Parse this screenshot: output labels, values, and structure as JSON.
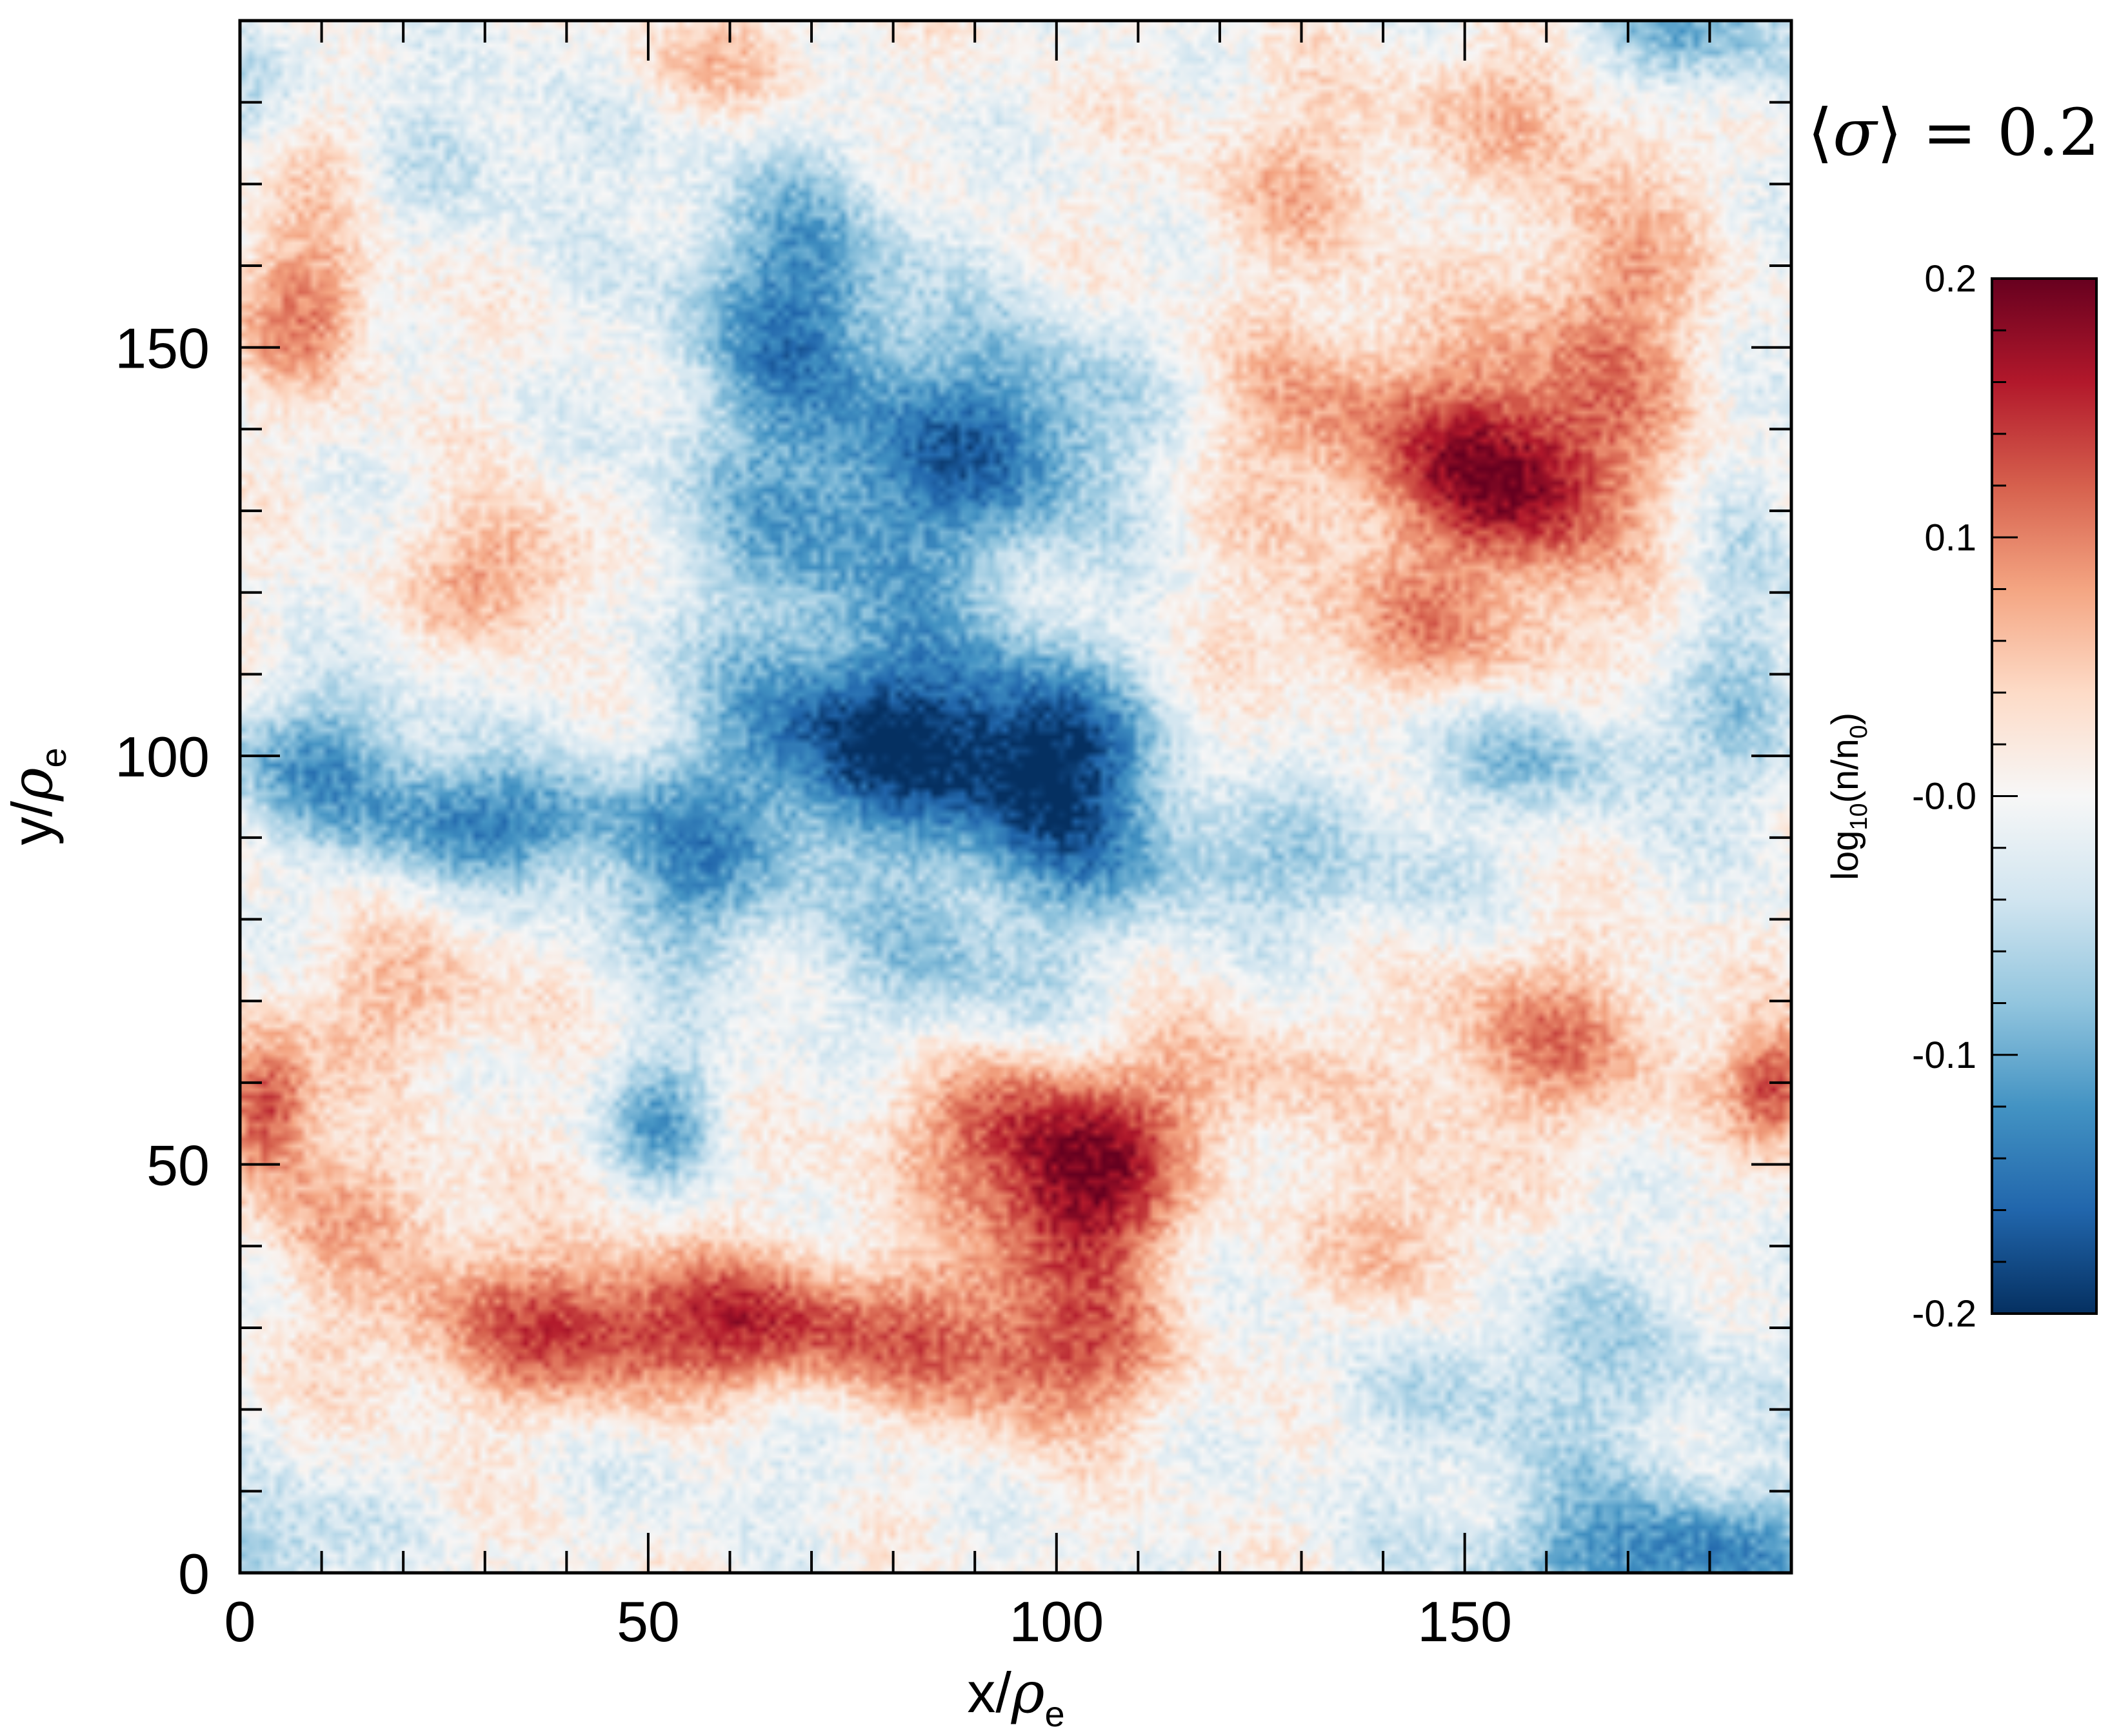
{
  "chart_data": {
    "type": "heatmap",
    "title": "",
    "annotation": {
      "prefix": "⟨",
      "symbol": "σ",
      "suffix": "⟩ = ",
      "value": "0.2"
    },
    "xlabel": {
      "base": "x/",
      "symbol": "ρ",
      "sub": "e"
    },
    "ylabel": {
      "base": "y/",
      "symbol": "ρ",
      "sub": "e"
    },
    "xlim": [
      0,
      190
    ],
    "ylim": [
      0,
      190
    ],
    "x_major_ticks": [
      0,
      50,
      100,
      150
    ],
    "y_major_ticks": [
      0,
      50,
      100,
      150
    ],
    "x_tick_labels": [
      "0",
      "50",
      "100",
      "150"
    ],
    "y_tick_labels": [
      "0",
      "50",
      "100",
      "150"
    ],
    "minor_tick_step": 10,
    "colormap": "RdBu_r",
    "colormap_stops": [
      "#053061",
      "#2166ac",
      "#4393c3",
      "#92c5de",
      "#d1e5f0",
      "#f7f7f7",
      "#fddbc7",
      "#f4a582",
      "#d6604d",
      "#b2182b",
      "#67001f"
    ],
    "colorbar": {
      "label": {
        "base": "log",
        "sub": "10",
        "rest": "(n/n",
        "sub2": "0",
        "end": ")"
      },
      "range": [
        -0.2,
        0.2
      ],
      "ticks": [
        0.2,
        0.1,
        0.0,
        -0.1,
        -0.2
      ],
      "tick_labels": [
        "0.2",
        "0.1",
        "-0.0",
        "-0.1",
        "-0.2"
      ],
      "minor_tick_step": 0.02
    },
    "features": [
      {
        "x": 78,
        "y": 102,
        "amp": -0.19,
        "sx": 14,
        "sy": 9
      },
      {
        "x": 100,
        "y": 98,
        "amp": -0.17,
        "sx": 8,
        "sy": 9
      },
      {
        "x": 68,
        "y": 155,
        "amp": -0.13,
        "sx": 10,
        "sy": 12
      },
      {
        "x": 95,
        "y": 140,
        "amp": -0.12,
        "sx": 12,
        "sy": 9
      },
      {
        "x": 75,
        "y": 128,
        "amp": -0.1,
        "sx": 15,
        "sy": 10
      },
      {
        "x": 30,
        "y": 92,
        "amp": -0.13,
        "sx": 12,
        "sy": 5
      },
      {
        "x": 10,
        "y": 100,
        "amp": -0.1,
        "sx": 10,
        "sy": 6
      },
      {
        "x": 55,
        "y": 85,
        "amp": -0.1,
        "sx": 9,
        "sy": 8
      },
      {
        "x": 52,
        "y": 56,
        "amp": -0.1,
        "sx": 5,
        "sy": 6
      },
      {
        "x": 88,
        "y": 75,
        "amp": -0.07,
        "sx": 12,
        "sy": 9
      },
      {
        "x": 175,
        "y": 2,
        "amp": -0.13,
        "sx": 16,
        "sy": 6
      },
      {
        "x": 3,
        "y": 3,
        "amp": -0.08,
        "sx": 8,
        "sy": 6
      },
      {
        "x": 176,
        "y": 188,
        "amp": -0.12,
        "sx": 8,
        "sy": 6
      },
      {
        "x": 160,
        "y": 100,
        "amp": -0.07,
        "sx": 14,
        "sy": 5
      },
      {
        "x": 135,
        "y": 85,
        "amp": -0.05,
        "sx": 12,
        "sy": 6
      },
      {
        "x": 115,
        "y": 88,
        "amp": -0.06,
        "sx": 10,
        "sy": 5
      },
      {
        "x": 160,
        "y": 25,
        "amp": -0.06,
        "sx": 18,
        "sy": 10
      },
      {
        "x": 185,
        "y": 110,
        "amp": -0.06,
        "sx": 5,
        "sy": 15
      },
      {
        "x": 30,
        "y": 175,
        "amp": -0.04,
        "sx": 12,
        "sy": 8
      },
      {
        "x": 5,
        "y": 180,
        "amp": -0.05,
        "sx": 8,
        "sy": 8
      },
      {
        "x": 60,
        "y": 15,
        "amp": -0.03,
        "sx": 10,
        "sy": 6
      },
      {
        "x": 103,
        "y": 45,
        "amp": 0.16,
        "sx": 8,
        "sy": 8
      },
      {
        "x": 95,
        "y": 55,
        "amp": 0.11,
        "sx": 12,
        "sy": 7
      },
      {
        "x": 70,
        "y": 30,
        "amp": 0.11,
        "sx": 20,
        "sy": 6
      },
      {
        "x": 40,
        "y": 30,
        "amp": 0.1,
        "sx": 18,
        "sy": 7
      },
      {
        "x": 100,
        "y": 25,
        "amp": 0.1,
        "sx": 10,
        "sy": 6
      },
      {
        "x": 3,
        "y": 57,
        "amp": 0.15,
        "sx": 4,
        "sy": 6
      },
      {
        "x": 188,
        "y": 60,
        "amp": 0.13,
        "sx": 4,
        "sy": 5
      },
      {
        "x": 157,
        "y": 133,
        "amp": 0.15,
        "sx": 9,
        "sy": 8
      },
      {
        "x": 140,
        "y": 140,
        "amp": 0.09,
        "sx": 16,
        "sy": 10
      },
      {
        "x": 168,
        "y": 155,
        "amp": 0.09,
        "sx": 7,
        "sy": 12
      },
      {
        "x": 145,
        "y": 115,
        "amp": 0.07,
        "sx": 15,
        "sy": 6
      },
      {
        "x": 160,
        "y": 65,
        "amp": 0.09,
        "sx": 12,
        "sy": 8
      },
      {
        "x": 143,
        "y": 40,
        "amp": 0.08,
        "sx": 7,
        "sy": 8
      },
      {
        "x": 33,
        "y": 123,
        "amp": 0.09,
        "sx": 7,
        "sy": 6
      },
      {
        "x": 8,
        "y": 155,
        "amp": 0.1,
        "sx": 6,
        "sy": 7
      },
      {
        "x": 10,
        "y": 175,
        "amp": 0.07,
        "sx": 6,
        "sy": 6
      },
      {
        "x": 20,
        "y": 70,
        "amp": 0.06,
        "sx": 10,
        "sy": 6
      },
      {
        "x": 60,
        "y": 185,
        "amp": 0.05,
        "sx": 10,
        "sy": 5
      },
      {
        "x": 160,
        "y": 180,
        "amp": 0.06,
        "sx": 12,
        "sy": 6
      },
      {
        "x": 130,
        "y": 170,
        "amp": 0.05,
        "sx": 10,
        "sy": 8
      },
      {
        "x": 120,
        "y": 60,
        "amp": 0.06,
        "sx": 8,
        "sy": 6
      },
      {
        "x": 15,
        "y": 45,
        "amp": 0.06,
        "sx": 10,
        "sy": 6
      }
    ]
  }
}
